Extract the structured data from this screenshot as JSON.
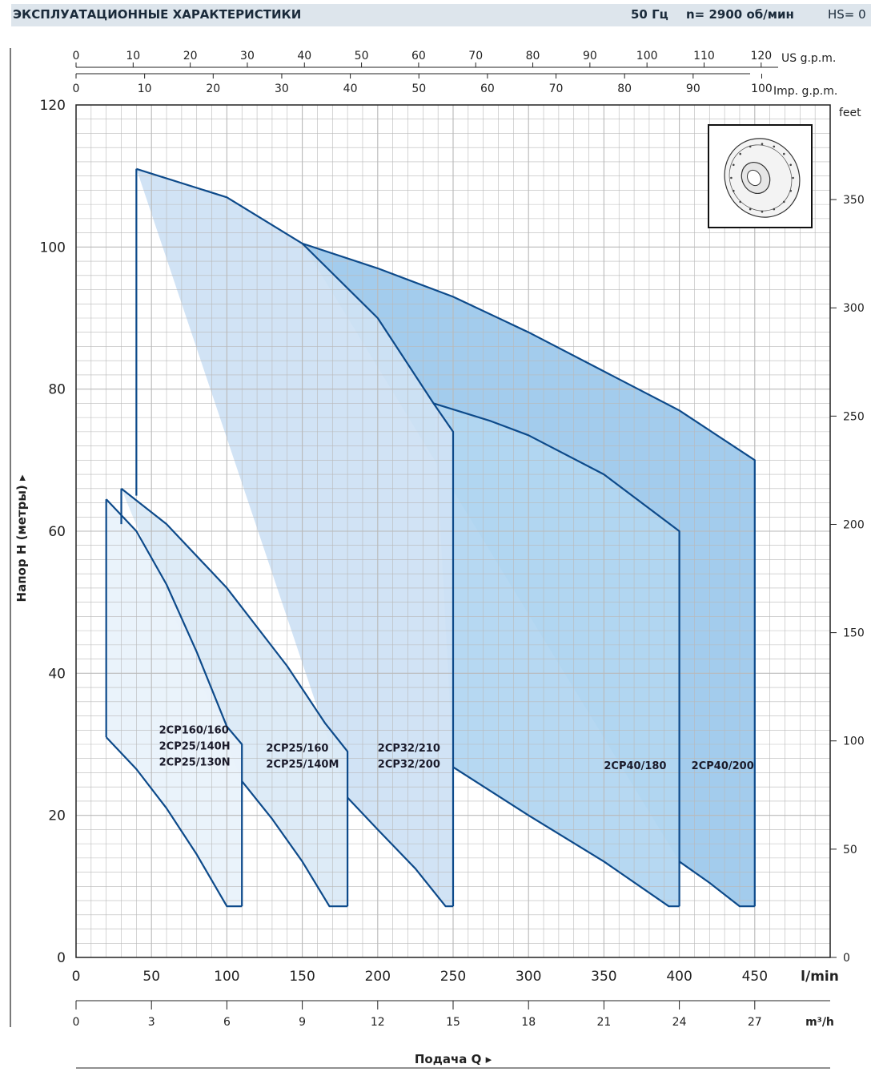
{
  "header": {
    "title": "ЭКСПЛУАТАЦИОННЫЕ ХАРАКТЕРИСТИКИ",
    "freq": "50 Гц",
    "speed": "n= 2900  об/мин",
    "hs": "HS= 0"
  },
  "chart_data": {
    "type": "area",
    "ylabel": "Напор Н (метры)",
    "xlabel": "Подача Q",
    "x_unit": "l/min",
    "y_unit_right": "feet",
    "xlim": [
      0,
      500
    ],
    "ylim": [
      0,
      120
    ],
    "grid": true,
    "x_ticks": [
      0,
      50,
      100,
      150,
      200,
      250,
      300,
      350,
      400,
      450
    ],
    "y_ticks": [
      0,
      20,
      40,
      60,
      80,
      100,
      120
    ],
    "feet_ticks": [
      0,
      50,
      100,
      150,
      200,
      250,
      300,
      350
    ],
    "us_gpm_ticks": [
      0,
      10,
      20,
      30,
      40,
      50,
      60,
      70,
      80,
      90,
      100,
      110,
      120
    ],
    "us_gpm_label": "US g.p.m.",
    "imp_gpm_ticks": [
      0,
      10,
      20,
      30,
      40,
      50,
      60,
      70,
      80,
      90,
      100
    ],
    "imp_gpm_label": "Imp. g.p.m.",
    "m3h_ticks": [
      0,
      3,
      6,
      9,
      12,
      15,
      18,
      21,
      24,
      27
    ],
    "m3h_label": "m³/h",
    "lmin_label": "l/min",
    "regions": [
      {
        "id": "2CP40/200",
        "labels": [
          "2CP40/200"
        ],
        "label_at": [
          408,
          26.5
        ],
        "color": "#9ec9ec",
        "top": [
          [
            150,
            100.5
          ],
          [
            200,
            97
          ],
          [
            250,
            93
          ],
          [
            300,
            88
          ],
          [
            350,
            82.5
          ],
          [
            400,
            77
          ],
          [
            450,
            70
          ]
        ],
        "bottom": [
          [
            400,
            13.5
          ],
          [
            420,
            10.5
          ],
          [
            440,
            7.2
          ],
          [
            450,
            7.2
          ]
        ]
      },
      {
        "id": "2CP40/180",
        "labels": [
          "2CP40/180"
        ],
        "label_at": [
          350,
          26.5
        ],
        "color": "#b2d6f1",
        "top": [
          [
            237,
            78
          ],
          [
            275,
            75.5
          ],
          [
            300,
            73.5
          ],
          [
            350,
            68
          ],
          [
            400,
            60
          ]
        ],
        "bottom": [
          [
            250,
            26.8
          ],
          [
            300,
            20
          ],
          [
            350,
            13.5
          ],
          [
            393,
            7.2
          ],
          [
            400,
            7.2
          ]
        ]
      },
      {
        "id": "2CP32",
        "labels": [
          "2CP32/210",
          "2CP32/200"
        ],
        "label_at": [
          200,
          29
        ],
        "color": "#cfe2f4",
        "top": [
          [
            40,
            111
          ],
          [
            100,
            107
          ],
          [
            150,
            100.5
          ],
          [
            200,
            90
          ],
          [
            237,
            78
          ],
          [
            250,
            74
          ]
        ],
        "bottom": [
          [
            180,
            22.5
          ],
          [
            200,
            18
          ],
          [
            225,
            12.5
          ],
          [
            245,
            7.2
          ],
          [
            250,
            7.2
          ]
        ]
      },
      {
        "id": "2CP25/160",
        "labels": [
          "2CP25/160",
          "2CP25/140M"
        ],
        "label_at": [
          126,
          29
        ],
        "color": "#dbeaf7",
        "top": [
          [
            30,
            66
          ],
          [
            60,
            61
          ],
          [
            100,
            52
          ],
          [
            140,
            41
          ],
          [
            165,
            33
          ],
          [
            180,
            29
          ]
        ],
        "bottom": [
          [
            110,
            24.8
          ],
          [
            130,
            19.5
          ],
          [
            150,
            13.5
          ],
          [
            168,
            7.2
          ],
          [
            180,
            7.2
          ]
        ]
      },
      {
        "id": "2CP160",
        "labels": [
          "2CP160/160",
          "2CP25/140H",
          "2CP25/130N"
        ],
        "label_at": [
          55,
          31.5
        ],
        "color": "#e9f2fb",
        "top": [
          [
            20,
            64.5
          ],
          [
            40,
            60
          ],
          [
            60,
            52.5
          ],
          [
            80,
            43
          ],
          [
            100,
            32.5
          ],
          [
            110,
            30
          ]
        ],
        "bottom": [
          [
            20,
            31
          ],
          [
            40,
            26.5
          ],
          [
            60,
            21
          ],
          [
            80,
            14.5
          ],
          [
            100,
            7.2
          ],
          [
            110,
            7.2
          ]
        ]
      }
    ]
  },
  "colors": {
    "line": "#0d4a8a",
    "grid": "#b9b9b9",
    "axis": "#222222"
  }
}
